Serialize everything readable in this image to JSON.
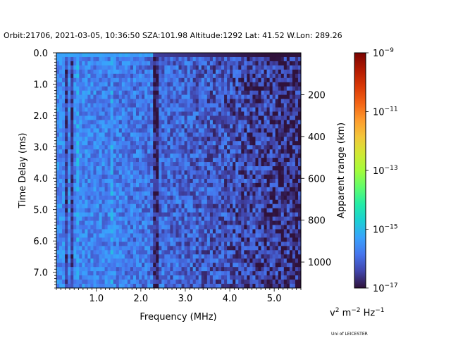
{
  "chart_data": {
    "type": "heatmap",
    "title": "Orbit:21706, 2021-03-05, 10:36:50 SZA:101.98 Altitude:1292 Lat: 41.52 W.Lon: 289.26",
    "xlabel": "Frequency (MHz)",
    "ylabel": "Time Delay (ms)",
    "y2label": "Apparent range (km)",
    "colorbar_label": "Apparent range (km)",
    "xlim": [
      0.1,
      5.6
    ],
    "ylim": [
      7.5,
      0.0
    ],
    "x_ticks": [
      {
        "value": 1.0,
        "label": "1.0"
      },
      {
        "value": 2.0,
        "label": "2.0"
      },
      {
        "value": 3.0,
        "label": "3.0"
      },
      {
        "value": 4.0,
        "label": "4.0"
      },
      {
        "value": 5.0,
        "label": "5.0"
      }
    ],
    "y_ticks": [
      {
        "value": 0.0,
        "label": "0.0"
      },
      {
        "value": 1.0,
        "label": "1.0"
      },
      {
        "value": 2.0,
        "label": "2.0"
      },
      {
        "value": 3.0,
        "label": "3.0"
      },
      {
        "value": 4.0,
        "label": "4.0"
      },
      {
        "value": 5.0,
        "label": "5.0"
      },
      {
        "value": 6.0,
        "label": "6.0"
      },
      {
        "value": 7.0,
        "label": "7.0"
      }
    ],
    "y2_ticks": [
      {
        "value": 200,
        "label": "200"
      },
      {
        "value": 400,
        "label": "400"
      },
      {
        "value": 600,
        "label": "600"
      },
      {
        "value": 800,
        "label": "800"
      },
      {
        "value": 1000,
        "label": "1000"
      }
    ],
    "km_per_ms": 149.9,
    "colorbar": {
      "scale": "log",
      "min_exp": -17,
      "max_exp": -9,
      "ticks": [
        {
          "exp": -9,
          "base": "10",
          "sup": "−9"
        },
        {
          "exp": -11,
          "base": "10",
          "sup": "−11"
        },
        {
          "exp": -13,
          "base": "10",
          "sup": "−13"
        },
        {
          "exp": -15,
          "base": "10",
          "sup": "−15"
        },
        {
          "exp": -17,
          "base": "10",
          "sup": "−17"
        }
      ],
      "colormap": [
        "#30123b",
        "#4145ab",
        "#4675ed",
        "#39a2fc",
        "#1bcfd4",
        "#24eca6",
        "#61fc6c",
        "#a4fc3b",
        "#d1e834",
        "#f3c63a",
        "#fe9b2d",
        "#f36315",
        "#d93806",
        "#b11901",
        "#7a0402"
      ]
    },
    "heatmap": {
      "grid_cols": 86,
      "grid_rows": 56,
      "freq_range_mhz": [
        0.1,
        5.6
      ],
      "delay_range_ms": [
        0.0,
        7.5
      ],
      "dark_bands_mhz": [
        0.34,
        0.45,
        2.35
      ],
      "bright_bands_mhz": [
        1.33,
        0.58
      ],
      "noise_exp_low_freq": -15.6,
      "noise_exp_high_freq": -16.7,
      "top_row_exp": -15.3
    }
  },
  "units_label": {
    "base": "v",
    "sup1": "2",
    "mid": " m",
    "sup2": "−2",
    "tail": " Hz",
    "sup3": "−1"
  },
  "credit": "Uni of LEICESTER"
}
